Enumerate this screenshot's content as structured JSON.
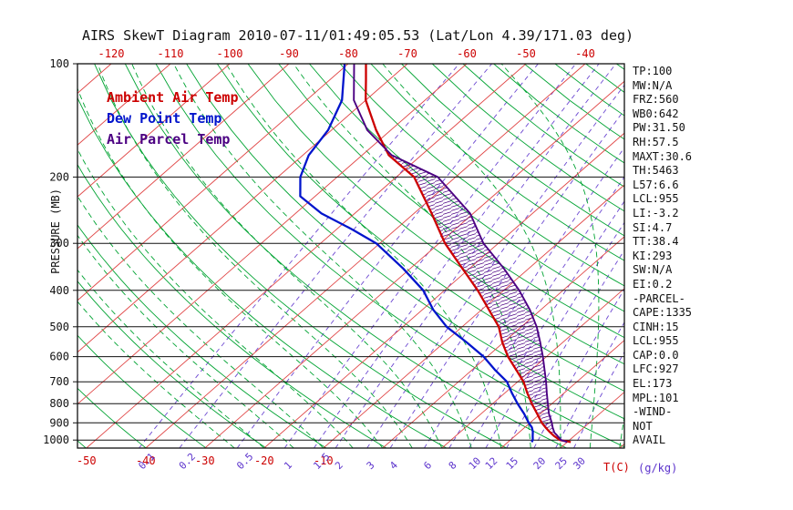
{
  "title": "AIRS SkewT Diagram 2010-07-11/01:49:05.53 (Lat/Lon 4.39/171.03 deg)",
  "legend": {
    "ambient": "Ambient Air Temp",
    "dew": "Dew Point Temp",
    "parcel": "Air Parcel Temp"
  },
  "axes": {
    "pressure_label": "PRESSURE (MB)",
    "pressure_ticks": [
      100,
      200,
      300,
      400,
      500,
      600,
      700,
      800,
      900,
      1000
    ],
    "top_temp_ticks": [
      -120,
      -110,
      -100,
      -90,
      -80,
      -70,
      -60,
      -50,
      -40
    ],
    "bottom_temp_ticks": [
      -50,
      -40,
      -30,
      -20,
      -10
    ],
    "temp_unit_label": "T(C)",
    "mr_unit_label": "(g/kg)"
  },
  "stats_panel": {
    "lines": [
      "TP:100",
      "MW:N/A",
      "FRZ:560",
      "WB0:642",
      "PW:31.50",
      "RH:57.5",
      "MAXT:30.6",
      "TH:5463",
      "L57:6.6",
      "LCL:955",
      "LI:-3.2",
      "SI:4.7",
      "TT:38.4",
      "KI:293",
      "SW:N/A",
      "EI:0.2",
      "-PARCEL-",
      "CAPE:1335",
      "CINH:15",
      "LCL:955",
      "CAP:0.0",
      "LFC:927",
      "EL:173",
      "MPL:101",
      "-WIND-",
      "NOT",
      "AVAIL"
    ]
  },
  "colors": {
    "axis": "#111111",
    "isotherm": "#e04545",
    "dry_adiabat": "#00a332",
    "moist_adiabat": "#00a332",
    "mixing_ratio": "#5c33cc",
    "ambient": "#cc0000",
    "dew": "#0014cc",
    "parcel": "#4b0082",
    "hatch": "#4b0082",
    "top_tick_labels": "#cc0000",
    "bottom_tick_labels": "#cc0000"
  },
  "chart_data": {
    "type": "line",
    "title": "AIRS SkewT log-P diagram",
    "xlabel": "Temperature (C)",
    "ylabel": "Pressure (MB)",
    "pressure_range": [
      100,
      1050
    ],
    "grid": "skew-t background: isotherms, dry/moist adiabats, mixing-ratio lines",
    "legend_position": "top-left-inside",
    "isotherms_c": {
      "start": -120,
      "end": 40,
      "step": 10
    },
    "dry_adiabats_k": {
      "start": 220,
      "end": 480,
      "step": 10
    },
    "moist_adiabats_start_c": {
      "start": -25,
      "end": 40,
      "step": 5
    },
    "mixing_ratios_gkg": [
      0.1,
      0.2,
      0.5,
      1,
      1.5,
      2,
      3,
      4,
      6,
      8,
      10,
      12,
      15,
      20,
      25,
      30
    ],
    "series": [
      {
        "name": "Ambient Air Temp",
        "color_key": "ambient",
        "points": [
          [
            1012,
            30.6
          ],
          [
            1000,
            28.4
          ],
          [
            975,
            26.6
          ],
          [
            950,
            25.0
          ],
          [
            925,
            23.5
          ],
          [
            900,
            22.0
          ],
          [
            850,
            19.4
          ],
          [
            800,
            16.6
          ],
          [
            750,
            13.8
          ],
          [
            700,
            11.0
          ],
          [
            650,
            7.4
          ],
          [
            600,
            3.5
          ],
          [
            550,
            -0.2
          ],
          [
            500,
            -3.8
          ],
          [
            450,
            -8.8
          ],
          [
            400,
            -14.4
          ],
          [
            350,
            -21.2
          ],
          [
            300,
            -29.0
          ],
          [
            250,
            -37.0
          ],
          [
            200,
            -47.0
          ],
          [
            175,
            -55.5
          ],
          [
            150,
            -62.5
          ],
          [
            125,
            -70.0
          ],
          [
            110,
            -74.0
          ],
          [
            100,
            -77.0
          ]
        ]
      },
      {
        "name": "Dew Point Temp",
        "color_key": "dew",
        "points": [
          [
            1012,
            24.0
          ],
          [
            1000,
            23.8
          ],
          [
            975,
            23.0
          ],
          [
            950,
            22.2
          ],
          [
            925,
            21.2
          ],
          [
            900,
            19.8
          ],
          [
            850,
            17.2
          ],
          [
            800,
            14.2
          ],
          [
            750,
            11.2
          ],
          [
            700,
            8.2
          ],
          [
            650,
            3.8
          ],
          [
            600,
            -0.6
          ],
          [
            550,
            -6.2
          ],
          [
            500,
            -12.6
          ],
          [
            450,
            -18.2
          ],
          [
            400,
            -23.6
          ],
          [
            350,
            -31.2
          ],
          [
            300,
            -40.6
          ],
          [
            275,
            -47.5
          ],
          [
            250,
            -55.6
          ],
          [
            225,
            -62.5
          ],
          [
            200,
            -66.2
          ],
          [
            175,
            -69.0
          ],
          [
            150,
            -70.6
          ],
          [
            125,
            -74.0
          ],
          [
            100,
            -80.6
          ]
        ]
      },
      {
        "name": "Air Parcel Temp",
        "color_key": "parcel",
        "points": [
          [
            1012,
            30.0
          ],
          [
            1000,
            28.6
          ],
          [
            975,
            27.2
          ],
          [
            955,
            26.0
          ],
          [
            925,
            24.7
          ],
          [
            900,
            23.7
          ],
          [
            850,
            21.4
          ],
          [
            800,
            19.3
          ],
          [
            750,
            17.1
          ],
          [
            700,
            14.8
          ],
          [
            650,
            12.2
          ],
          [
            600,
            9.4
          ],
          [
            550,
            6.2
          ],
          [
            500,
            2.6
          ],
          [
            450,
            -1.9
          ],
          [
            400,
            -7.4
          ],
          [
            350,
            -14.2
          ],
          [
            300,
            -22.5
          ],
          [
            250,
            -30.5
          ],
          [
            200,
            -43.0
          ],
          [
            175,
            -55.0
          ],
          [
            150,
            -64.0
          ],
          [
            125,
            -72.0
          ],
          [
            100,
            -79.0
          ]
        ]
      }
    ],
    "cape_hatch": {
      "from_p": 960,
      "to_p": 174
    }
  }
}
